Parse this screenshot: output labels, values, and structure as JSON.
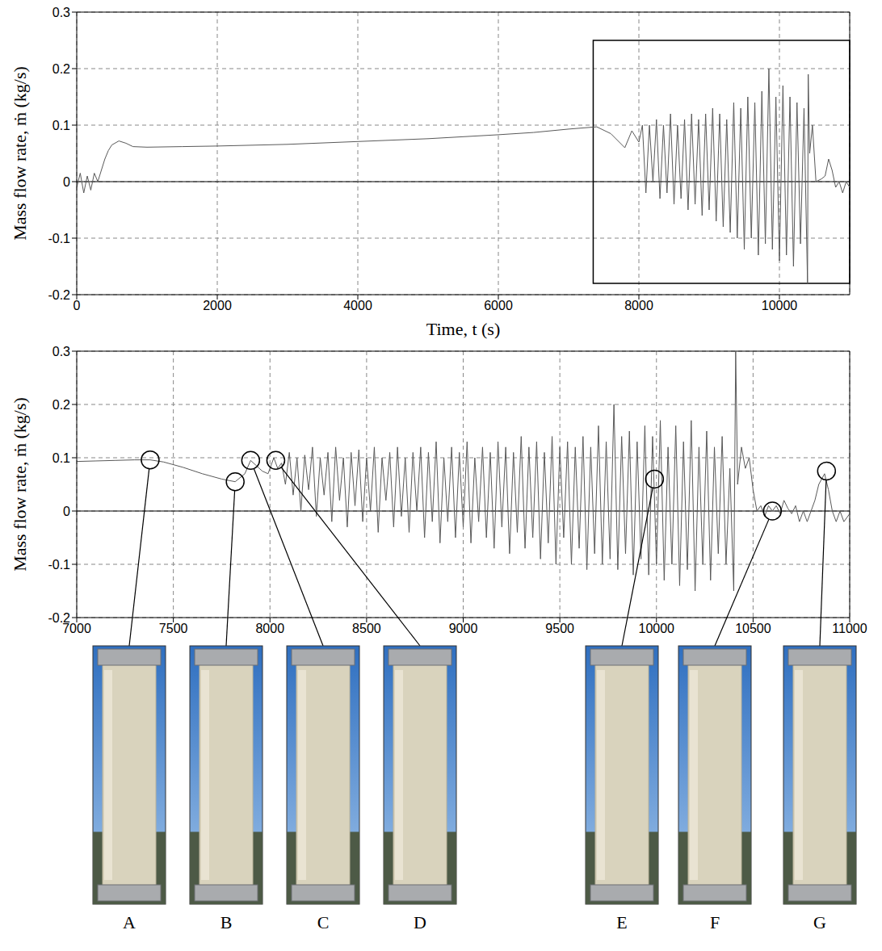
{
  "chart_data": [
    {
      "type": "line",
      "x_label": "Time, t (s)",
      "y_label": "Mass flow rate, ṁ (kg/s)",
      "xlim": [
        0,
        11000
      ],
      "xticks": [
        0,
        2000,
        4000,
        6000,
        8000,
        10000
      ],
      "ylim": [
        -0.2,
        0.3
      ],
      "yticks": [
        -0.2,
        -0.1,
        0,
        0.1,
        0.2,
        0.3
      ],
      "grid": true,
      "color": "#595959",
      "zoom_box": {
        "xlim": [
          7350,
          11000
        ],
        "ylim": [
          -0.18,
          0.25
        ]
      },
      "x": [
        0,
        50,
        100,
        150,
        200,
        250,
        300,
        350,
        400,
        450,
        500,
        600,
        700,
        800,
        1000,
        1500,
        2000,
        3000,
        4000,
        5000,
        6000,
        6500,
        7000,
        7400,
        7600,
        7800,
        7900,
        8000,
        8050,
        8100,
        8150,
        8200,
        8250,
        8300,
        8350,
        8400,
        8450,
        8500,
        8550,
        8600,
        8650,
        8700,
        8750,
        8800,
        8850,
        8900,
        8950,
        9000,
        9050,
        9100,
        9150,
        9200,
        9250,
        9300,
        9350,
        9400,
        9450,
        9500,
        9550,
        9600,
        9650,
        9700,
        9750,
        9800,
        9850,
        9900,
        9950,
        10000,
        10050,
        10100,
        10150,
        10200,
        10250,
        10300,
        10350,
        10400,
        10410,
        10430,
        10470,
        10520,
        10600,
        10650,
        10700,
        10750,
        10800,
        10850,
        10900,
        10950,
        11000
      ],
      "values": [
        -0.01,
        0.015,
        -0.02,
        0.01,
        -0.015,
        0.015,
        0,
        0.02,
        0.04,
        0.055,
        0.065,
        0.072,
        0.068,
        0.062,
        0.061,
        0.062,
        0.063,
        0.066,
        0.071,
        0.076,
        0.083,
        0.087,
        0.093,
        0.097,
        0.085,
        0.06,
        0.09,
        0.07,
        0.1,
        -0.02,
        0.1,
        0,
        0.11,
        -0.03,
        0.1,
        -0.02,
        0.12,
        -0.04,
        0.1,
        -0.03,
        0.11,
        -0.05,
        0.12,
        -0.04,
        0.11,
        -0.06,
        0.12,
        -0.05,
        0.13,
        -0.07,
        0.12,
        -0.08,
        0.11,
        -0.09,
        0.14,
        -0.1,
        0.13,
        -0.12,
        0.15,
        -0.1,
        0.14,
        -0.13,
        0.16,
        -0.11,
        0.2,
        -0.12,
        0.15,
        -0.14,
        0.17,
        -0.13,
        0.15,
        -0.15,
        0.14,
        -0.11,
        0.13,
        -0.18,
        0.19,
        0.05,
        0.1,
        0,
        0.005,
        0.01,
        0.04,
        0.02,
        -0.01,
        0,
        -0.02,
        0,
        -0.01
      ]
    },
    {
      "type": "line",
      "y_label": "Mass flow rate, ṁ (kg/s)",
      "xlim": [
        7000,
        11000
      ],
      "xticks": [
        7000,
        7500,
        8000,
        8500,
        9000,
        9500,
        10000,
        10500,
        11000
      ],
      "ylim": [
        -0.2,
        0.3
      ],
      "yticks": [
        -0.2,
        -0.1,
        0,
        0.1,
        0.2,
        0.3
      ],
      "grid": true,
      "color": "#595959",
      "annotations": [
        {
          "label": "A",
          "x": 7380,
          "y": 0.096
        },
        {
          "label": "B",
          "x": 7820,
          "y": 0.055
        },
        {
          "label": "C",
          "x": 7900,
          "y": 0.095
        },
        {
          "label": "D",
          "x": 8030,
          "y": 0.095
        },
        {
          "label": "E",
          "x": 9990,
          "y": 0.06
        },
        {
          "label": "F",
          "x": 10600,
          "y": 0
        },
        {
          "label": "G",
          "x": 10880,
          "y": 0.075
        }
      ],
      "x": [
        7000,
        7100,
        7200,
        7300,
        7380,
        7450,
        7550,
        7650,
        7750,
        7820,
        7870,
        7900,
        7930,
        7960,
        7990,
        8020,
        8040,
        8060,
        8080,
        8100,
        8120,
        8140,
        8160,
        8180,
        8200,
        8220,
        8240,
        8260,
        8280,
        8300,
        8320,
        8340,
        8360,
        8380,
        8400,
        8420,
        8440,
        8460,
        8480,
        8500,
        8520,
        8540,
        8560,
        8580,
        8600,
        8620,
        8640,
        8660,
        8680,
        8700,
        8720,
        8740,
        8760,
        8780,
        8800,
        8820,
        8840,
        8860,
        8880,
        8900,
        8920,
        8940,
        8960,
        8980,
        9000,
        9020,
        9040,
        9060,
        9080,
        9100,
        9120,
        9140,
        9160,
        9180,
        9200,
        9220,
        9240,
        9260,
        9280,
        9300,
        9320,
        9340,
        9360,
        9380,
        9400,
        9420,
        9440,
        9460,
        9480,
        9500,
        9520,
        9540,
        9560,
        9580,
        9600,
        9620,
        9640,
        9660,
        9680,
        9700,
        9720,
        9740,
        9760,
        9780,
        9800,
        9820,
        9840,
        9860,
        9880,
        9900,
        9920,
        9940,
        9960,
        9980,
        10000,
        10020,
        10040,
        10060,
        10080,
        10100,
        10120,
        10140,
        10160,
        10180,
        10200,
        10220,
        10240,
        10260,
        10280,
        10300,
        10320,
        10340,
        10360,
        10380,
        10400,
        10410,
        10420,
        10440,
        10460,
        10480,
        10500,
        10520,
        10540,
        10560,
        10580,
        10600,
        10620,
        10640,
        10660,
        10680,
        10700,
        10720,
        10740,
        10760,
        10780,
        10800,
        10820,
        10840,
        10870,
        10890,
        10910,
        10930,
        10950,
        10970,
        11000
      ],
      "values": [
        0.093,
        0.094,
        0.095,
        0.096,
        0.096,
        0.092,
        0.082,
        0.07,
        0.06,
        0.055,
        0.07,
        0.095,
        0.085,
        0.075,
        0.07,
        0.1,
        0.08,
        0.09,
        0.05,
        0.11,
        0.03,
        0.1,
        0,
        0.105,
        0.04,
        0.12,
        -0.01,
        0.1,
        0.03,
        0.11,
        -0.02,
        0.12,
        0.02,
        0.1,
        -0.03,
        0.11,
        0.01,
        0.115,
        -0.02,
        0.1,
        0,
        0.12,
        -0.04,
        0.1,
        0.02,
        0.11,
        -0.03,
        0.12,
        -0.01,
        0.1,
        -0.04,
        0.11,
        0,
        0.12,
        -0.05,
        0.11,
        -0.02,
        0.13,
        -0.06,
        0.1,
        -0.02,
        0.12,
        -0.05,
        0.11,
        -0.03,
        0.13,
        -0.06,
        0.1,
        -0.02,
        0.12,
        -0.05,
        0.11,
        -0.07,
        0.13,
        -0.03,
        0.12,
        -0.08,
        0.11,
        -0.04,
        0.14,
        -0.07,
        0.12,
        -0.05,
        0.13,
        -0.09,
        0.11,
        -0.06,
        0.14,
        -0.1,
        0.12,
        -0.05,
        0.13,
        -0.1,
        0.12,
        -0.07,
        0.14,
        -0.11,
        0.12,
        -0.08,
        0.16,
        -0.1,
        0.13,
        -0.09,
        0.2,
        -0.11,
        0.14,
        -0.08,
        0.15,
        -0.12,
        0.13,
        -0.09,
        0.16,
        -0.12,
        0.14,
        -0.1,
        0.17,
        -0.13,
        0.12,
        -0.1,
        0.16,
        -0.14,
        0.13,
        -0.11,
        0.17,
        -0.15,
        0.12,
        -0.1,
        0.15,
        -0.13,
        0.12,
        -0.08,
        0.14,
        -0.1,
        0.08,
        -0.15,
        0.3,
        0.05,
        0.12,
        0.08,
        0.1,
        0.04,
        0,
        0.01,
        -0.01,
        0.01,
        0,
        0.01,
        -0.005,
        0.02,
        0.005,
        -0.005,
        0.01,
        -0.02,
        0,
        -0.02,
        0,
        0.02,
        0.05,
        0.07,
        0.04,
        0,
        -0.02,
        0,
        -0.02,
        -0.005
      ]
    }
  ]
}
